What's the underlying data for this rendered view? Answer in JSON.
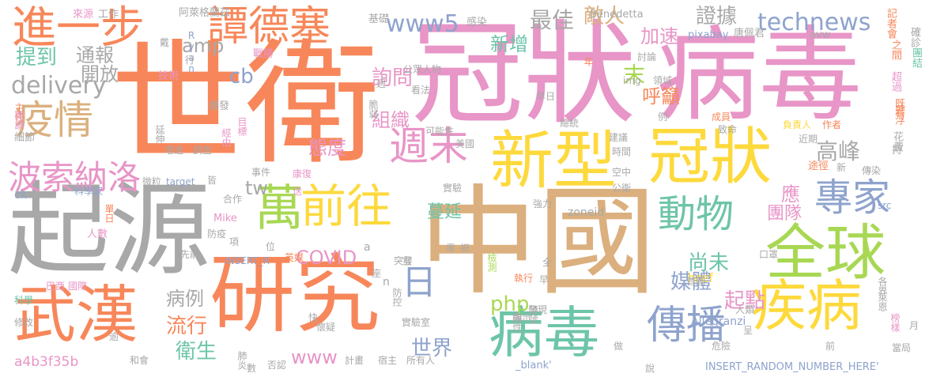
{
  "colors": {
    "gray": "#a8a8a8",
    "orange": "#f7875a",
    "pink": "#e895c7",
    "tan": "#dbb07e",
    "blue": "#8ea3cd",
    "green": "#a8d853",
    "yellow": "#fdd93c",
    "teal": "#6dc5a9"
  },
  "words": [
    {
      "text": "世衛",
      "color": "orange"
    },
    {
      "text": "冠狀",
      "color": "pink"
    },
    {
      "text": "病毒",
      "color": "pink"
    },
    {
      "text": "中國",
      "color": "tan"
    },
    {
      "text": "起源",
      "color": "gray"
    },
    {
      "text": "研究",
      "color": "orange"
    },
    {
      "text": "新型",
      "color": "yellow"
    },
    {
      "text": "冠狀",
      "color": "yellow"
    },
    {
      "text": "全球",
      "color": "green"
    },
    {
      "text": "疾病",
      "color": "yellow"
    },
    {
      "text": "病毒",
      "color": "teal"
    },
    {
      "text": "武漢",
      "color": "orange"
    },
    {
      "text": "進一步",
      "color": "orange"
    },
    {
      "text": "譚德塞",
      "color": "orange"
    },
    {
      "text": "前往",
      "color": "yellow"
    },
    {
      "text": "疫情",
      "color": "tan"
    },
    {
      "text": "週末",
      "color": "pink"
    },
    {
      "text": "波索納洛",
      "color": "pink"
    },
    {
      "text": "專家",
      "color": "blue"
    },
    {
      "text": "傳播",
      "color": "blue"
    },
    {
      "text": "動物",
      "color": "teal"
    },
    {
      "text": "萬",
      "color": "green"
    },
    {
      "text": "日",
      "color": "blue"
    },
    {
      "text": "technews",
      "color": "blue"
    },
    {
      "text": "www5",
      "color": "blue"
    },
    {
      "text": "最佳",
      "color": "gray"
    },
    {
      "text": "敵人",
      "color": "tan"
    },
    {
      "text": "證據",
      "color": "gray"
    },
    {
      "text": "amp",
      "color": "gray"
    },
    {
      "text": "通報",
      "color": "gray"
    },
    {
      "text": "提到",
      "color": "teal"
    },
    {
      "text": "開放",
      "color": "gray"
    },
    {
      "text": "delivery",
      "color": "gray"
    },
    {
      "text": "cb",
      "color": "blue"
    },
    {
      "text": "新增",
      "color": "teal"
    },
    {
      "text": "加速",
      "color": "pink"
    },
    {
      "text": "詢問",
      "color": "pink"
    },
    {
      "text": "呼籲",
      "color": "orange"
    },
    {
      "text": "末",
      "color": "green"
    },
    {
      "text": "高峰",
      "color": "gray"
    },
    {
      "text": "態度",
      "color": "pink"
    },
    {
      "text": "組織",
      "color": "pink"
    },
    {
      "text": "tw",
      "color": "gray"
    },
    {
      "text": "蔓延",
      "color": "teal"
    },
    {
      "text": "應",
      "color": "pink"
    },
    {
      "text": "團隊",
      "color": "pink"
    },
    {
      "text": "尚未",
      "color": "teal"
    },
    {
      "text": "媒體",
      "color": "blue"
    },
    {
      "text": "起點",
      "color": "pink"
    },
    {
      "text": "COVID",
      "color": "pink"
    },
    {
      "text": "php",
      "color": "green"
    },
    {
      "text": "病例",
      "color": "gray"
    },
    {
      "text": "流行",
      "color": "orange"
    },
    {
      "text": "衛生",
      "color": "teal"
    },
    {
      "text": "世界",
      "color": "blue"
    },
    {
      "text": "www",
      "color": "pink"
    },
    {
      "text": "a4b3f35b",
      "color": "pink"
    },
    {
      "text": "href",
      "color": "yellow"
    },
    {
      "text": "Allegranzi",
      "color": "blue"
    },
    {
      "text": "INSERT_RANDOM_NUMBER_HERE'",
      "color": "blue"
    },
    {
      "text": "_blank'",
      "color": "blue"
    },
    {
      "text": "zoneid",
      "color": "gray"
    },
    {
      "text": "Benedetta",
      "color": "gray"
    },
    {
      "text": "pixabay",
      "color": "blue"
    },
    {
      "text": "avw",
      "color": "gray"
    },
    {
      "text": "阿萊格蘭茲",
      "color": "gray"
    },
    {
      "text": "來源",
      "color": "pink"
    },
    {
      "text": "工作",
      "color": "gray"
    },
    {
      "text": "基礎",
      "color": "gray"
    },
    {
      "text": "感染",
      "color": "gray"
    },
    {
      "text": "唐佩君",
      "color": "gray"
    },
    {
      "text": "記者會",
      "color": "orange"
    },
    {
      "text": "確診",
      "color": "gray"
    },
    {
      "text": "之間",
      "color": "orange"
    },
    {
      "text": "團結",
      "color": "teal"
    },
    {
      "text": "超過",
      "color": "pink"
    },
    {
      "text": "既有",
      "color": "orange"
    },
    {
      "text": "懸浮",
      "color": "orange"
    },
    {
      "text": "花費",
      "color": "gray"
    },
    {
      "text": "持",
      "color": "gray"
    },
    {
      "text": "Ryan",
      "color": "blue"
    },
    {
      "text": "戰勝",
      "color": "pink"
    },
    {
      "text": "技術",
      "color": "pink"
    },
    {
      "text": "主任",
      "color": "orange"
    },
    {
      "text": "閱讀",
      "color": "pink"
    },
    {
      "text": "細節",
      "color": "gray"
    },
    {
      "text": "延伸",
      "color": "gray"
    },
    {
      "text": "增進",
      "color": "gray"
    },
    {
      "text": "調查",
      "color": "gray"
    },
    {
      "text": "爆發",
      "color": "gray"
    },
    {
      "text": "目標",
      "color": "pink"
    },
    {
      "text": "經由",
      "color": "pink"
    },
    {
      "text": "微粒",
      "color": "gray"
    },
    {
      "text": "target",
      "color": "blue"
    },
    {
      "text": "皆",
      "color": "gray"
    },
    {
      "text": "事件",
      "color": "gray"
    },
    {
      "text": "康復",
      "color": "pink"
    },
    {
      "text": "合作",
      "color": "gray"
    },
    {
      "text": "送",
      "color": "pink"
    },
    {
      "text": "ck",
      "color": "blue"
    },
    {
      "text": "科學家",
      "color": "blue"
    },
    {
      "text": "單日",
      "color": "orange"
    },
    {
      "text": "人數",
      "color": "pink"
    },
    {
      "text": "Mike",
      "color": "pink"
    },
    {
      "text": "防疫",
      "color": "gray"
    },
    {
      "text": "INSERT_R",
      "color": "blue"
    },
    {
      "text": "先前",
      "color": "gray"
    },
    {
      "text": "巴西",
      "color": "pink"
    },
    {
      "text": "國際",
      "color": "pink"
    },
    {
      "text": "科學",
      "color": "teal"
    },
    {
      "text": "英媒",
      "color": "orange"
    },
    {
      "text": "修改",
      "color": "gray"
    },
    {
      "text": "逾",
      "color": "gray"
    },
    {
      "text": "和會",
      "color": "gray"
    },
    {
      "text": "肺炎",
      "color": "gray"
    },
    {
      "text": "否認",
      "color": "gray"
    },
    {
      "text": "數",
      "color": "gray"
    },
    {
      "text": "懷疑",
      "color": "gray"
    },
    {
      "text": "快",
      "color": "gray"
    },
    {
      "text": "防控",
      "color": "gray"
    },
    {
      "text": "實驗室",
      "color": "gray"
    },
    {
      "text": "計畫",
      "color": "gray"
    },
    {
      "text": "宿主",
      "color": "gray"
    },
    {
      "text": "所有人",
      "color": "gray"
    },
    {
      "text": "顯示",
      "color": "gray"
    },
    {
      "text": "陽性",
      "color": "gray"
    },
    {
      "text": "發現",
      "color": "gray"
    },
    {
      "text": "頭號",
      "color": "gray"
    },
    {
      "text": "執行",
      "color": "orange"
    },
    {
      "text": "檢測",
      "color": "green"
    },
    {
      "text": "零",
      "color": "gray"
    },
    {
      "text": "祝",
      "color": "gray"
    },
    {
      "text": "突發",
      "color": "gray"
    },
    {
      "text": "室",
      "color": "gray"
    },
    {
      "text": "全",
      "color": "gray"
    },
    {
      "text": "強力",
      "color": "gray"
    },
    {
      "text": "早",
      "color": "gray"
    },
    {
      "text": "空中",
      "color": "gray"
    },
    {
      "text": "公衛",
      "color": "gray"
    },
    {
      "text": "時間",
      "color": "gray"
    },
    {
      "text": "建議",
      "color": "gray"
    },
    {
      "text": "實驗",
      "color": "gray"
    },
    {
      "text": "公眾人物",
      "color": "gray"
    },
    {
      "text": "看法",
      "color": "gray"
    },
    {
      "text": "可能性",
      "color": "gray"
    },
    {
      "text": "美國",
      "color": "gray"
    },
    {
      "text": "早日",
      "color": "gray"
    },
    {
      "text": "總統",
      "color": "gray"
    },
    {
      "text": "例",
      "color": "gray"
    },
    {
      "text": "討論",
      "color": "gray"
    },
    {
      "text": "領域",
      "color": "gray"
    },
    {
      "text": "img",
      "color": "gray"
    },
    {
      "text": "年",
      "color": "orange"
    },
    {
      "text": "成員",
      "color": "orange"
    },
    {
      "text": "負責人",
      "color": "yellow"
    },
    {
      "text": "作者",
      "color": "orange"
    },
    {
      "text": "致命",
      "color": "gray"
    },
    {
      "text": "近期",
      "color": "gray"
    },
    {
      "text": "途徑",
      "color": "orange"
    },
    {
      "text": "傳染",
      "color": "gray"
    },
    {
      "text": "新",
      "color": "gray"
    },
    {
      "text": "src",
      "color": "blue"
    },
    {
      "text": "口罩",
      "color": "gray"
    },
    {
      "text": "首圖",
      "color": "gray"
    },
    {
      "text": "各界",
      "color": "gray"
    },
    {
      "text": "萊恩",
      "color": "gray"
    },
    {
      "text": "人類",
      "color": "gray"
    },
    {
      "text": "榜樣",
      "color": "pink"
    },
    {
      "text": "呈",
      "color": "gray"
    },
    {
      "text": "危險",
      "color": "gray"
    },
    {
      "text": "做",
      "color": "gray"
    },
    {
      "text": "說",
      "color": "gray"
    },
    {
      "text": "前",
      "color": "gray"
    },
    {
      "text": "月",
      "color": "gray"
    },
    {
      "text": "當局",
      "color": "gray"
    },
    {
      "text": "行",
      "color": "gray"
    },
    {
      "text": "戴",
      "color": "gray"
    },
    {
      "text": "位",
      "color": "gray"
    },
    {
      "text": "項",
      "color": "gray"
    },
    {
      "text": "a",
      "color": "gray"
    },
    {
      "text": "n",
      "color": "gray"
    },
    {
      "text": "座",
      "color": "gray"
    },
    {
      "text": "週",
      "color": "gray"
    },
    {
      "text": "脆弱",
      "color": "gray"
    }
  ]
}
